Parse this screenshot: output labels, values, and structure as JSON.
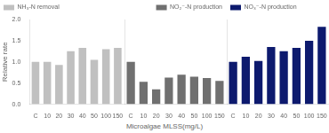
{
  "chart_data": [
    {
      "type": "bar",
      "categories": [
        "C",
        "10",
        "20",
        "30",
        "40",
        "50",
        "100",
        "150"
      ],
      "series": [
        {
          "name": "NH₃-N removal",
          "color": "#c0c0c0",
          "values": [
            1.0,
            1.0,
            0.93,
            1.25,
            1.33,
            1.05,
            1.3,
            1.33
          ]
        }
      ],
      "ylim": [
        0.0,
        2.0
      ],
      "yticks": [
        {
          "value": 0.0,
          "label": "0.0"
        },
        0.5,
        {
          "value": 1.0,
          "label": "1.0"
        },
        1.5,
        {
          "value": 2.0,
          "label": "2.0"
        }
      ],
      "ylabel": "Relative rate",
      "legend": "upper left",
      "grid": false
    },
    {
      "type": "bar",
      "categories": [
        "C",
        "10",
        "20",
        "30",
        "40",
        "50",
        "100",
        "150"
      ],
      "series": [
        {
          "name": "NO₂⁻-N production",
          "color": "#707070",
          "values": [
            1.0,
            0.53,
            0.35,
            0.63,
            0.7,
            0.65,
            0.62,
            0.55
          ]
        }
      ],
      "ylim": [
        0.0,
        2.0
      ],
      "yticks": [
        {
          "value": 0.0,
          "label": "0.0"
        },
        0.5,
        {
          "value": 1.0,
          "label": "1.0"
        },
        1.5,
        {
          "value": 2.0,
          "label": "2.0"
        }
      ],
      "xlabel": "Microalgae MLSS(mg/L)",
      "legend": "upper right",
      "tick_labels": "x",
      "grid": false
    },
    {
      "type": "bar",
      "categories": [
        "C",
        "10",
        "20",
        "30",
        "40",
        "50",
        "100",
        "150"
      ],
      "series": [
        {
          "name": "NO₃⁻-N production",
          "color": "#0d1a6e",
          "values": [
            1.0,
            1.12,
            1.02,
            1.35,
            1.25,
            1.33,
            1.5,
            1.83
          ]
        }
      ],
      "ylim": [
        0.0,
        2.0
      ],
      "yticks": [
        {
          "value": 0.0,
          "label": "0.0"
        },
        0.5,
        {
          "value": 1.0,
          "label": "1.0"
        },
        1.5,
        {
          "value": 2.0,
          "label": "2.0"
        }
      ],
      "legend": "upper left",
      "tick_labels": "x",
      "grid": false
    }
  ]
}
